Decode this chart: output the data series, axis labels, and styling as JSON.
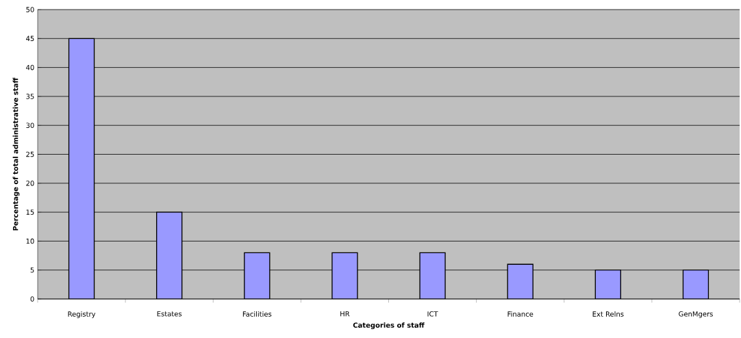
{
  "chart_data": {
    "type": "bar",
    "xlabel": "Categories of staff",
    "ylabel": "Percentage of total administrative staff",
    "categories": [
      "Registry",
      "Estates",
      "Facilities",
      "HR",
      "ICT",
      "Finance",
      "Ext Relns",
      "GenMgers"
    ],
    "values": [
      45,
      15,
      8,
      8,
      8,
      6,
      5,
      5
    ],
    "color": "#9999ff",
    "ylim": [
      0,
      50
    ],
    "yticks": [
      0,
      5,
      10,
      15,
      20,
      25,
      30,
      35,
      40,
      45,
      50
    ],
    "grid": "y"
  }
}
